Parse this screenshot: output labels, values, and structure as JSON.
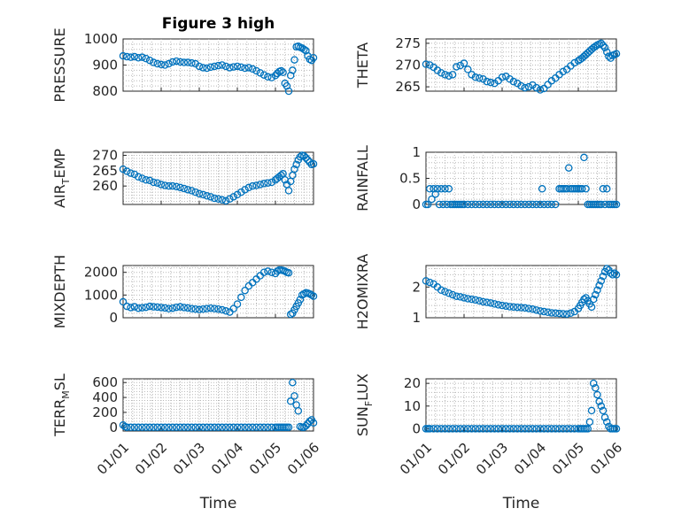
{
  "colors": {
    "marker": "#0072BD",
    "axis": "#262626",
    "grid": "#b8b8b8",
    "background": "#ffffff"
  },
  "chart_data": [
    {
      "type": "scatter",
      "title": "Figure 3 high",
      "ylabel": "PRESSURE",
      "xlabel": "",
      "ylim": [
        800,
        1000
      ],
      "yticks": [
        "800",
        "900",
        "1000"
      ],
      "xticks": [],
      "x": [
        0.0,
        0.1,
        0.2,
        0.3,
        0.4,
        0.5,
        0.6,
        0.7,
        0.8,
        0.9,
        1.0,
        1.1,
        1.2,
        1.3,
        1.4,
        1.5,
        1.6,
        1.7,
        1.8,
        1.9,
        2.0,
        2.1,
        2.2,
        2.3,
        2.4,
        2.5,
        2.6,
        2.7,
        2.8,
        2.9,
        3.0,
        3.1,
        3.2,
        3.3,
        3.4,
        3.5,
        3.6,
        3.7,
        3.8,
        3.9,
        4.0,
        4.05,
        4.1,
        4.15,
        4.2,
        4.25,
        4.3,
        4.35,
        4.4,
        4.45,
        4.5,
        4.55,
        4.6,
        4.65,
        4.7,
        4.75,
        4.8,
        4.85,
        4.9,
        4.95,
        5.0
      ],
      "y": [
        935,
        932,
        930,
        932,
        928,
        930,
        925,
        918,
        910,
        905,
        902,
        900,
        905,
        912,
        915,
        912,
        910,
        910,
        908,
        905,
        895,
        890,
        888,
        892,
        895,
        898,
        900,
        895,
        890,
        893,
        895,
        892,
        888,
        890,
        885,
        878,
        870,
        862,
        855,
        852,
        860,
        868,
        875,
        878,
        872,
        830,
        820,
        800,
        860,
        880,
        920,
        970,
        972,
        968,
        965,
        960,
        955,
        935,
        922,
        918,
        928
      ]
    },
    {
      "type": "scatter",
      "title": "",
      "ylabel": "THETA",
      "xlabel": "",
      "ylim": [
        264,
        276
      ],
      "yticks": [
        "265",
        "270",
        "275"
      ],
      "xticks": [],
      "x": [
        0.0,
        0.1,
        0.2,
        0.3,
        0.4,
        0.5,
        0.6,
        0.7,
        0.8,
        0.9,
        1.0,
        1.1,
        1.2,
        1.3,
        1.4,
        1.5,
        1.6,
        1.7,
        1.8,
        1.9,
        2.0,
        2.1,
        2.2,
        2.3,
        2.4,
        2.5,
        2.6,
        2.7,
        2.8,
        2.9,
        3.0,
        3.1,
        3.2,
        3.3,
        3.4,
        3.5,
        3.6,
        3.7,
        3.8,
        3.9,
        4.0,
        4.05,
        4.1,
        4.15,
        4.2,
        4.25,
        4.3,
        4.35,
        4.4,
        4.45,
        4.5,
        4.55,
        4.6,
        4.65,
        4.7,
        4.75,
        4.8,
        4.85,
        4.9,
        4.95,
        5.0
      ],
      "y": [
        270.2,
        270.0,
        269.5,
        268.8,
        268.2,
        267.8,
        267.5,
        267.8,
        269.6,
        269.9,
        270.4,
        269.0,
        267.8,
        267.2,
        267.0,
        266.8,
        266.2,
        266.0,
        265.8,
        266.4,
        267.2,
        267.4,
        266.8,
        266.2,
        265.8,
        265.2,
        264.8,
        265.0,
        265.4,
        264.8,
        264.3,
        264.6,
        265.5,
        266.4,
        267.0,
        267.8,
        268.5,
        269.0,
        269.8,
        270.5,
        271.0,
        271.3,
        271.6,
        272.0,
        272.4,
        272.8,
        273.2,
        273.6,
        274.0,
        274.3,
        274.6,
        274.8,
        275.0,
        274.5,
        274.0,
        273.0,
        272.0,
        271.6,
        272.2,
        272.4,
        272.6
      ]
    },
    {
      "type": "scatter",
      "title": "",
      "ylabel": "AIR_TEMP",
      "xlabel": "",
      "ylim": [
        254,
        271
      ],
      "yticks": [
        "260",
        "265",
        "270"
      ],
      "xticks": [],
      "x": [
        0.0,
        0.1,
        0.2,
        0.3,
        0.4,
        0.5,
        0.6,
        0.7,
        0.8,
        0.9,
        1.0,
        1.1,
        1.2,
        1.3,
        1.4,
        1.5,
        1.6,
        1.7,
        1.8,
        1.9,
        2.0,
        2.1,
        2.2,
        2.3,
        2.4,
        2.5,
        2.6,
        2.7,
        2.8,
        2.9,
        3.0,
        3.1,
        3.2,
        3.3,
        3.4,
        3.5,
        3.6,
        3.7,
        3.8,
        3.9,
        4.0,
        4.05,
        4.1,
        4.15,
        4.2,
        4.25,
        4.3,
        4.35,
        4.4,
        4.45,
        4.5,
        4.55,
        4.6,
        4.65,
        4.7,
        4.75,
        4.8,
        4.85,
        4.9,
        4.95,
        5.0
      ],
      "y": [
        265.5,
        264.8,
        264.2,
        263.8,
        263.0,
        262.5,
        262.0,
        261.8,
        261.2,
        261.0,
        260.5,
        260.2,
        260.0,
        260.0,
        259.8,
        259.5,
        259.2,
        258.8,
        258.5,
        258.0,
        257.5,
        257.2,
        256.8,
        256.5,
        256.0,
        255.8,
        255.5,
        255.2,
        255.8,
        256.5,
        257.2,
        258.0,
        258.8,
        259.5,
        260.0,
        260.2,
        260.5,
        260.8,
        261.0,
        261.2,
        262.0,
        262.5,
        263.0,
        263.5,
        264.0,
        262.0,
        260.5,
        258.5,
        261.5,
        263.5,
        265.5,
        267.0,
        268.5,
        269.5,
        270.0,
        269.8,
        269.2,
        268.5,
        267.8,
        267.0,
        267.2
      ]
    },
    {
      "type": "scatter",
      "title": "",
      "ylabel": "RAINFALL",
      "xlabel": "",
      "ylim": [
        0,
        1
      ],
      "yticks": [
        "0",
        "0.5",
        "1"
      ],
      "xticks": [],
      "x": [
        0.0,
        0.05,
        0.1,
        0.15,
        0.2,
        0.25,
        0.3,
        0.35,
        0.4,
        0.45,
        0.5,
        0.55,
        0.6,
        0.65,
        0.7,
        0.75,
        0.8,
        0.85,
        0.9,
        0.95,
        1.0,
        1.1,
        1.2,
        1.3,
        1.4,
        1.5,
        1.6,
        1.7,
        1.8,
        1.9,
        2.0,
        2.1,
        2.2,
        2.3,
        2.4,
        2.5,
        2.6,
        2.7,
        2.8,
        2.9,
        3.0,
        3.05,
        3.1,
        3.2,
        3.3,
        3.4,
        3.5,
        3.55,
        3.6,
        3.65,
        3.7,
        3.75,
        3.8,
        3.85,
        3.9,
        3.95,
        4.0,
        4.05,
        4.1,
        4.15,
        4.2,
        4.25,
        4.3,
        4.35,
        4.4,
        4.45,
        4.5,
        4.55,
        4.6,
        4.65,
        4.7,
        4.75,
        4.8,
        4.85,
        4.9,
        4.95,
        5.0
      ],
      "y": [
        0,
        0,
        0.3,
        0.1,
        0.3,
        0.2,
        0.3,
        0,
        0.3,
        0,
        0.3,
        0,
        0.3,
        0,
        0,
        0,
        0,
        0,
        0,
        0,
        0,
        0,
        0,
        0,
        0,
        0,
        0,
        0,
        0,
        0,
        0,
        0,
        0,
        0,
        0,
        0,
        0,
        0,
        0,
        0,
        0,
        0.3,
        0,
        0,
        0,
        0,
        0.3,
        0.3,
        0.3,
        0.3,
        0.3,
        0.7,
        0.3,
        0.3,
        0.3,
        0.3,
        0.3,
        0.3,
        0.3,
        0.9,
        0.3,
        0,
        0,
        0,
        0,
        0,
        0,
        0,
        0,
        0.3,
        0,
        0.3,
        0,
        0,
        0,
        0,
        0
      ]
    },
    {
      "type": "scatter",
      "title": "",
      "ylabel": "MIXDEPTH",
      "xlabel": "",
      "ylim": [
        0,
        2300
      ],
      "yticks": [
        "0",
        "1000",
        "2000"
      ],
      "xticks": [],
      "x": [
        0.0,
        0.1,
        0.2,
        0.3,
        0.4,
        0.5,
        0.6,
        0.7,
        0.8,
        0.9,
        1.0,
        1.1,
        1.2,
        1.3,
        1.4,
        1.5,
        1.6,
        1.7,
        1.8,
        1.9,
        2.0,
        2.1,
        2.2,
        2.3,
        2.4,
        2.5,
        2.6,
        2.7,
        2.8,
        2.9,
        3.0,
        3.1,
        3.2,
        3.3,
        3.4,
        3.5,
        3.6,
        3.7,
        3.8,
        3.9,
        4.0,
        4.05,
        4.1,
        4.15,
        4.2,
        4.25,
        4.3,
        4.35,
        4.4,
        4.45,
        4.5,
        4.55,
        4.6,
        4.65,
        4.7,
        4.75,
        4.8,
        4.85,
        4.9,
        4.95,
        5.0
      ],
      "y": [
        700,
        500,
        450,
        480,
        420,
        440,
        460,
        500,
        480,
        470,
        450,
        430,
        400,
        420,
        460,
        480,
        450,
        430,
        400,
        380,
        360,
        380,
        400,
        420,
        400,
        380,
        350,
        300,
        250,
        400,
        600,
        900,
        1200,
        1400,
        1550,
        1700,
        1850,
        2000,
        2050,
        2000,
        1950,
        2050,
        2100,
        2100,
        2080,
        2050,
        2000,
        1980,
        150,
        200,
        350,
        500,
        650,
        800,
        1000,
        1050,
        1100,
        1080,
        1050,
        1000,
        950
      ]
    },
    {
      "type": "scatter",
      "title": "",
      "ylabel": "H2OMIXRA",
      "xlabel": "",
      "ylim": [
        1,
        2.7
      ],
      "yticks": [
        "1",
        "2"
      ],
      "xticks": [],
      "x": [
        0.0,
        0.1,
        0.2,
        0.3,
        0.4,
        0.5,
        0.6,
        0.7,
        0.8,
        0.9,
        1.0,
        1.1,
        1.2,
        1.3,
        1.4,
        1.5,
        1.6,
        1.7,
        1.8,
        1.9,
        2.0,
        2.1,
        2.2,
        2.3,
        2.4,
        2.5,
        2.6,
        2.7,
        2.8,
        2.9,
        3.0,
        3.1,
        3.2,
        3.3,
        3.4,
        3.5,
        3.6,
        3.7,
        3.8,
        3.9,
        4.0,
        4.05,
        4.1,
        4.15,
        4.2,
        4.25,
        4.3,
        4.35,
        4.4,
        4.45,
        4.5,
        4.55,
        4.6,
        4.65,
        4.7,
        4.75,
        4.8,
        4.85,
        4.9,
        4.95,
        5.0
      ],
      "y": [
        2.2,
        2.15,
        2.1,
        2.0,
        1.9,
        1.85,
        1.8,
        1.75,
        1.7,
        1.68,
        1.65,
        1.62,
        1.6,
        1.58,
        1.55,
        1.52,
        1.5,
        1.48,
        1.45,
        1.42,
        1.4,
        1.38,
        1.36,
        1.35,
        1.34,
        1.33,
        1.32,
        1.3,
        1.28,
        1.25,
        1.22,
        1.2,
        1.18,
        1.16,
        1.15,
        1.14,
        1.13,
        1.12,
        1.15,
        1.2,
        1.3,
        1.4,
        1.5,
        1.6,
        1.65,
        1.55,
        1.45,
        1.35,
        1.6,
        1.75,
        1.9,
        2.05,
        2.2,
        2.35,
        2.5,
        2.6,
        2.55,
        2.45,
        2.4,
        2.45,
        2.4
      ]
    },
    {
      "type": "scatter",
      "title": "",
      "ylabel": "TERR_MSL",
      "xlabel": "Time",
      "ylim": [
        -50,
        650
      ],
      "yticks": [
        "0",
        "200",
        "400",
        "600"
      ],
      "xticks": [
        "01/01",
        "01/02",
        "01/03",
        "01/04",
        "01/05",
        "01/06"
      ],
      "x": [
        0.0,
        0.05,
        0.1,
        0.2,
        0.3,
        0.4,
        0.5,
        0.6,
        0.7,
        0.8,
        0.9,
        1.0,
        1.1,
        1.2,
        1.3,
        1.4,
        1.5,
        1.6,
        1.7,
        1.8,
        1.9,
        2.0,
        2.1,
        2.2,
        2.3,
        2.4,
        2.5,
        2.6,
        2.7,
        2.8,
        2.9,
        3.0,
        3.1,
        3.2,
        3.3,
        3.4,
        3.5,
        3.6,
        3.7,
        3.8,
        3.9,
        4.0,
        4.05,
        4.1,
        4.15,
        4.2,
        4.25,
        4.3,
        4.35,
        4.4,
        4.45,
        4.5,
        4.55,
        4.6,
        4.65,
        4.7,
        4.75,
        4.8,
        4.85,
        4.9,
        4.95,
        5.0
      ],
      "y": [
        30,
        10,
        0,
        0,
        0,
        0,
        0,
        0,
        0,
        0,
        0,
        0,
        0,
        0,
        0,
        0,
        0,
        0,
        0,
        0,
        0,
        0,
        0,
        0,
        0,
        0,
        0,
        0,
        0,
        0,
        0,
        0,
        0,
        0,
        0,
        0,
        0,
        0,
        0,
        0,
        0,
        0,
        0,
        0,
        0,
        0,
        0,
        0,
        0,
        350,
        600,
        420,
        300,
        220,
        10,
        0,
        0,
        20,
        50,
        80,
        100,
        60
      ]
    },
    {
      "type": "scatter",
      "title": "",
      "ylabel": "SUN_FLUX",
      "xlabel": "Time",
      "ylim": [
        -1,
        22
      ],
      "yticks": [
        "0",
        "10",
        "20"
      ],
      "xticks": [
        "01/01",
        "01/02",
        "01/03",
        "01/04",
        "01/05",
        "01/06"
      ],
      "x": [
        0.0,
        0.05,
        0.1,
        0.2,
        0.3,
        0.4,
        0.5,
        0.6,
        0.7,
        0.8,
        0.9,
        1.0,
        1.1,
        1.2,
        1.3,
        1.4,
        1.5,
        1.6,
        1.7,
        1.8,
        1.9,
        2.0,
        2.1,
        2.2,
        2.3,
        2.4,
        2.5,
        2.6,
        2.7,
        2.8,
        2.9,
        3.0,
        3.1,
        3.2,
        3.3,
        3.4,
        3.5,
        3.6,
        3.7,
        3.8,
        3.9,
        4.0,
        4.05,
        4.1,
        4.15,
        4.2,
        4.25,
        4.3,
        4.35,
        4.4,
        4.45,
        4.5,
        4.55,
        4.6,
        4.65,
        4.7,
        4.75,
        4.8,
        4.85,
        4.9,
        4.95,
        5.0
      ],
      "y": [
        0,
        0,
        0,
        0,
        0,
        0,
        0,
        0,
        0,
        0,
        0,
        0,
        0,
        0,
        0,
        0,
        0,
        0,
        0,
        0,
        0,
        0,
        0,
        0,
        0,
        0,
        0,
        0,
        0,
        0,
        0,
        0,
        0,
        0,
        0,
        0,
        0,
        0,
        0,
        0,
        0,
        0,
        0,
        0,
        0,
        0,
        0,
        3,
        8,
        20,
        18,
        15,
        12,
        10,
        8,
        5,
        3,
        1,
        0,
        0,
        0,
        0
      ]
    }
  ]
}
